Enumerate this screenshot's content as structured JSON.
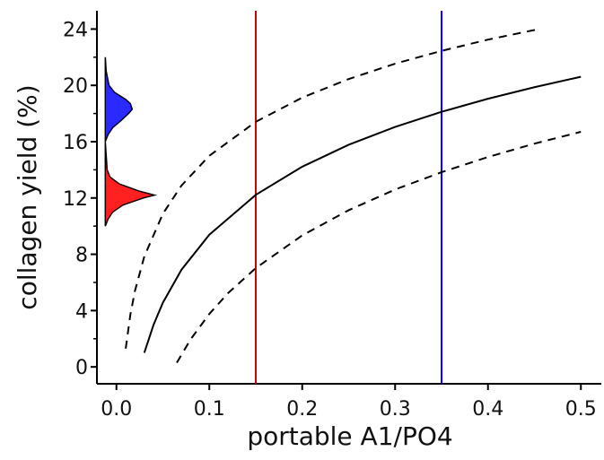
{
  "chart_data": {
    "type": "line",
    "xlabel": "portable A1/PO4",
    "ylabel": "collagen yield (%)",
    "xlim": [
      -0.021,
      0.522
    ],
    "ylim": [
      -1.2,
      25.3
    ],
    "xticks": [
      {
        "value": 0,
        "label": "0.0"
      },
      0.1,
      0.2,
      0.3,
      0.4,
      0.5
    ],
    "yticks": [
      0,
      4,
      8,
      12,
      16,
      20,
      24
    ],
    "yminor": [
      2,
      6,
      10,
      14,
      18,
      22
    ],
    "series": [
      {
        "color": "#000000",
        "dash": false,
        "x": [
          0.03,
          0.04,
          0.05,
          0.07,
          0.1,
          0.15,
          0.2,
          0.25,
          0.3,
          0.35,
          0.4,
          0.45,
          0.5
        ],
        "values": [
          1,
          3.0,
          4.56,
          6.9,
          9.39,
          12.22,
          14.22,
          15.78,
          17.05,
          18.12,
          19.05,
          19.87,
          20.61
        ]
      },
      {
        "color": "#000000",
        "dash": true,
        "x": [
          0.01,
          0.015,
          0.02,
          0.03,
          0.05,
          0.07,
          0.1,
          0.15,
          0.2,
          0.25,
          0.3,
          0.35,
          0.4,
          0.455
        ],
        "values": [
          1.3,
          3.71,
          5.42,
          7.84,
          10.88,
          12.88,
          15.0,
          17.41,
          19.13,
          20.45,
          21.54,
          22.45,
          23.25,
          24.0
        ]
      },
      {
        "color": "#000000",
        "dash": true,
        "x": [
          0.065,
          0.08,
          0.1,
          0.12,
          0.15,
          0.2,
          0.25,
          0.3,
          0.35,
          0.4,
          0.45,
          0.5
        ],
        "values": [
          0.3,
          1.97,
          3.76,
          5.23,
          7.02,
          9.34,
          11.13,
          12.6,
          13.83,
          14.91,
          15.86,
          16.7
        ]
      }
    ],
    "vlines": [
      {
        "x": 0.15,
        "color": "#cc0000"
      },
      {
        "x": 0.35,
        "color": "#0000ff"
      }
    ],
    "density_base": -0.012,
    "densities": [
      {
        "color": "#ff2020",
        "y": [
          10,
          10.5,
          11,
          11.5,
          12,
          12.2,
          12.5,
          13,
          13.5,
          14,
          15,
          16
        ],
        "x": [
          -0.012,
          -0.009,
          -0.004,
          0.007,
          0.029,
          0.041,
          0.024,
          0.003,
          -0.007,
          -0.01,
          -0.011,
          -0.012
        ]
      },
      {
        "color": "#2a2aff",
        "y": [
          16,
          16.5,
          17,
          17.5,
          18,
          18.3,
          18.7,
          19,
          19.5,
          20,
          21,
          22
        ],
        "x": [
          -0.012,
          -0.009,
          -0.004,
          0.005,
          0.013,
          0.017,
          0.015,
          0.01,
          -0.002,
          -0.008,
          -0.011,
          -0.012
        ]
      }
    ]
  }
}
